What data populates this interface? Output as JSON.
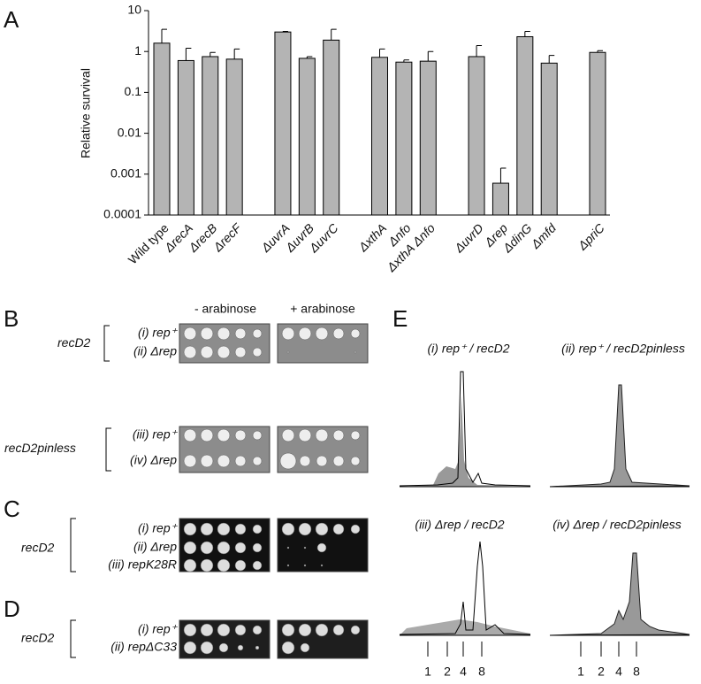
{
  "chart_data": {
    "type": "bar",
    "yscale": "log",
    "ylabel": "Relative survival",
    "categories": [
      "Wild type",
      "ΔrecA",
      "ΔrecB",
      "ΔrecF",
      null,
      "ΔuvrA",
      "ΔuvrB",
      "ΔuvrC",
      null,
      "ΔxthA",
      "Δnfo",
      "ΔxthA Δnfo",
      null,
      "ΔuvrD",
      "Δrep",
      "ΔdinG",
      "Δmfd",
      null,
      "ΔpriC"
    ],
    "values": [
      1.6,
      0.6,
      0.75,
      0.65,
      null,
      3,
      0.68,
      1.9,
      null,
      0.72,
      0.55,
      0.58,
      null,
      0.75,
      0.0006,
      2.3,
      0.52,
      null,
      0.95
    ],
    "errors": [
      1.9,
      0.6,
      0.2,
      0.5,
      null,
      0.1,
      0.07,
      1.6,
      null,
      0.43,
      0.07,
      0.42,
      null,
      0.65,
      0.0008,
      0.8,
      0.28,
      null,
      0.1
    ],
    "color": "#b4b4b4",
    "ylim": [
      0.0001,
      10
    ],
    "yticks": [
      0.0001,
      0.001,
      0.01,
      0.1,
      1,
      10
    ],
    "grid": false
  },
  "panel_labels": [
    "A",
    "B",
    "C",
    "D",
    "E"
  ],
  "panel_b": {
    "headers": [
      "- arabinose",
      "+ arabinose"
    ],
    "groups": [
      {
        "strain": "recD2",
        "rows": [
          "(i) rep⁺",
          "(ii) Δrep"
        ]
      },
      {
        "strain": "recD2pinless",
        "rows": [
          "(iii) rep⁺",
          "(iv) Δrep"
        ]
      }
    ]
  },
  "panel_c": {
    "strain": "recD2",
    "rows": [
      "(i) rep⁺",
      "(ii) Δrep",
      "(iii) repK28R"
    ]
  },
  "panel_d": {
    "strain": "recD2",
    "rows": [
      "(i) rep⁺",
      "(ii) repΔC33"
    ]
  },
  "panel_e": {
    "titles": [
      "(i) rep⁺ / recD2",
      "(ii) rep⁺ / recD2pinless",
      "(iii) Δrep / recD2",
      "(iv) Δrep / recD2pinless"
    ],
    "axis_labels": [
      "1",
      "2",
      "4",
      "8"
    ]
  }
}
